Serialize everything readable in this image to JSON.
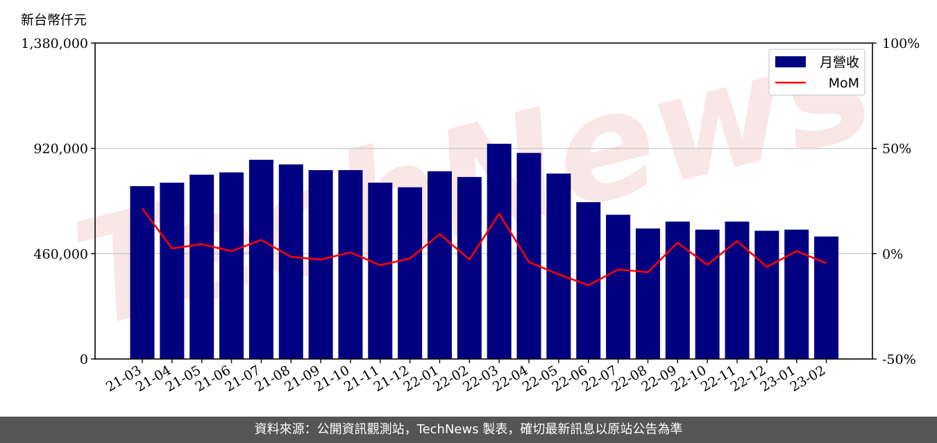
{
  "unit_label": "新台幣仟元",
  "footer": "資料來源：公開資訊觀測站，TechNews 製表，確切最新訊息以原站公告為準",
  "watermark": "TechNews",
  "colors": {
    "bar": "#000080",
    "line": "#ff0000",
    "grid": "#cccccc",
    "footer_bg": "#555555"
  },
  "chart_data": {
    "type": "bar",
    "categories": [
      "21-03",
      "21-04",
      "21-05",
      "21-06",
      "21-07",
      "21-08",
      "21-09",
      "21-10",
      "21-11",
      "21-12",
      "22-01",
      "22-02",
      "22-03",
      "22-04",
      "22-05",
      "22-06",
      "22-07",
      "22-08",
      "22-09",
      "22-10",
      "22-11",
      "22-12",
      "23-01",
      "23-02"
    ],
    "series": [
      {
        "name": "月營收",
        "type": "bar",
        "axis": "left",
        "values": [
          755000,
          770000,
          805000,
          815000,
          870000,
          850000,
          825000,
          825000,
          770000,
          750000,
          820000,
          795000,
          940000,
          900000,
          810000,
          685000,
          630000,
          570000,
          600000,
          565000,
          600000,
          560000,
          565000,
          535000
        ]
      },
      {
        "name": "MoM",
        "type": "line",
        "axis": "right",
        "values": [
          21.5,
          2.5,
          4.5,
          1.2,
          6.5,
          -1.5,
          -2.8,
          0.6,
          -5.5,
          -2.3,
          9.3,
          -2.8,
          19.0,
          -4.0,
          -9.8,
          -15.0,
          -7.5,
          -8.8,
          5.2,
          -5.3,
          6.0,
          -6.3,
          1.2,
          -4.5
        ]
      }
    ],
    "ylim": [
      0,
      1380000
    ],
    "y_ticks": [
      "0",
      "460,000",
      "920,000",
      "1,380,000"
    ],
    "y2lim": [
      -50,
      100
    ],
    "y2_ticks": [
      "-50%",
      "0%",
      "50%",
      "100%"
    ],
    "grid": true,
    "legend_position": "top-right"
  }
}
